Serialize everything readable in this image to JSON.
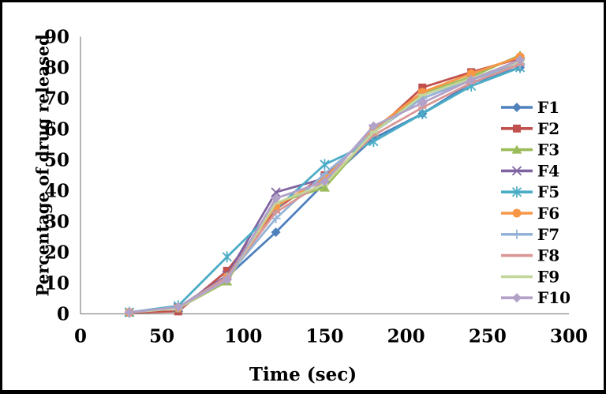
{
  "frame": {
    "background": "#ffffff",
    "border_color": "#000000",
    "axis_line_color": "#8c8c8c",
    "text_color": "#000000"
  },
  "chart_data": {
    "type": "line",
    "title": "",
    "xlabel": "Time (sec)",
    "ylabel": "Percentage of drug released",
    "x": [
      30,
      60,
      90,
      120,
      150,
      180,
      210,
      240,
      270
    ],
    "xlim": [
      0,
      300
    ],
    "ylim": [
      0,
      90
    ],
    "x_ticks": [
      0,
      50,
      100,
      150,
      200,
      250,
      300
    ],
    "y_ticks": [
      0,
      10,
      20,
      30,
      40,
      50,
      60,
      70,
      80,
      90
    ],
    "grid": false,
    "legend_position": "right",
    "series": [
      {
        "name": "F1",
        "color": "#4F81BD",
        "marker": "diamond",
        "values": [
          0.5,
          1.8,
          12.0,
          26.5,
          42.5,
          57.0,
          65.0,
          75.0,
          80.0
        ]
      },
      {
        "name": "F2",
        "color": "#C0504D",
        "marker": "square",
        "values": [
          0.4,
          0.8,
          14.0,
          34.0,
          45.0,
          59.0,
          73.5,
          78.5,
          83.0
        ]
      },
      {
        "name": "F3",
        "color": "#9BBB59",
        "marker": "triangle",
        "values": [
          0.5,
          1.8,
          10.5,
          36.0,
          41.0,
          59.0,
          71.5,
          77.0,
          84.0
        ]
      },
      {
        "name": "F4",
        "color": "#8064A2",
        "marker": "x",
        "values": [
          0.5,
          2.0,
          12.5,
          39.5,
          44.0,
          60.0,
          70.0,
          76.0,
          82.0
        ]
      },
      {
        "name": "F5",
        "color": "#4BACC6",
        "marker": "asterisk",
        "values": [
          0.5,
          2.6,
          18.5,
          34.0,
          48.5,
          56.0,
          65.0,
          74.0,
          80.0
        ]
      },
      {
        "name": "F6",
        "color": "#F79646",
        "marker": "circle",
        "values": [
          0.5,
          2.0,
          12.0,
          35.0,
          44.0,
          60.0,
          72.0,
          78.0,
          83.5
        ]
      },
      {
        "name": "F7",
        "color": "#95B3D7",
        "marker": "plus",
        "values": [
          0.5,
          2.0,
          12.0,
          31.0,
          45.5,
          59.0,
          70.0,
          76.0,
          81.0
        ]
      },
      {
        "name": "F8",
        "color": "#D99694",
        "marker": "dash",
        "values": [
          0.5,
          1.8,
          12.0,
          33.0,
          43.0,
          58.0,
          67.0,
          75.0,
          81.0
        ]
      },
      {
        "name": "F9",
        "color": "#C3D69B",
        "marker": "dash",
        "values": [
          0.5,
          1.8,
          11.0,
          36.0,
          42.0,
          59.0,
          71.0,
          76.5,
          82.0
        ]
      },
      {
        "name": "F10",
        "color": "#B3A2C7",
        "marker": "diamond",
        "values": [
          0.5,
          2.2,
          11.0,
          37.5,
          43.0,
          61.0,
          68.5,
          76.0,
          82.5
        ]
      }
    ]
  }
}
